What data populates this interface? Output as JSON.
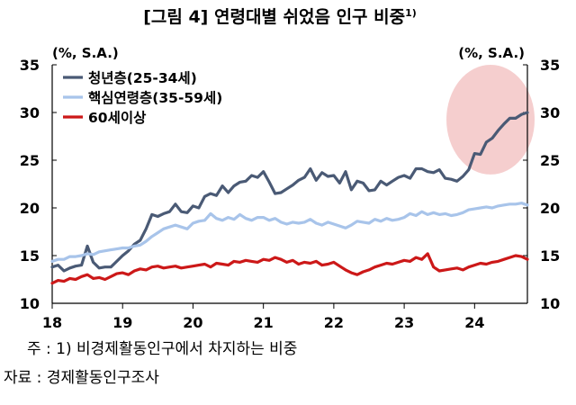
{
  "chart_data": {
    "type": "line",
    "title": "[그림 4] 연령대별 쉬었음 인구 비중",
    "title_superscript": "1)",
    "y_unit_left": "(%, S.A.)",
    "y_unit_right": "(%, S.A.)",
    "ylim": [
      10,
      35
    ],
    "yticks": [
      10,
      15,
      20,
      25,
      30,
      35
    ],
    "xlim": [
      2018.0,
      2024.75
    ],
    "xticks": [
      {
        "value": 2018,
        "label": "18"
      },
      {
        "value": 2019,
        "label": "19"
      },
      {
        "value": 2020,
        "label": "20"
      },
      {
        "value": 2021,
        "label": "21"
      },
      {
        "value": 2022,
        "label": "22"
      },
      {
        "value": 2023,
        "label": "23"
      },
      {
        "value": 2024,
        "label": "24"
      }
    ],
    "grid": false,
    "legend_position": "top-left",
    "highlight": {
      "shape": "ellipse",
      "color": "#f3c6c6",
      "x_range": [
        2023.6,
        2024.75
      ],
      "y_range": [
        23.5,
        35
      ]
    },
    "series": [
      {
        "name": "청년층(25-34세)",
        "color": "#4a5a75",
        "points": [
          [
            2018.0,
            13.8
          ],
          [
            2018.083,
            14.0
          ],
          [
            2018.167,
            13.4
          ],
          [
            2018.25,
            13.7
          ],
          [
            2018.333,
            13.9
          ],
          [
            2018.417,
            14.0
          ],
          [
            2018.5,
            16.0
          ],
          [
            2018.583,
            14.3
          ],
          [
            2018.667,
            13.7
          ],
          [
            2018.75,
            13.8
          ],
          [
            2018.833,
            13.8
          ],
          [
            2018.917,
            14.4
          ],
          [
            2019.0,
            15.0
          ],
          [
            2019.083,
            15.5
          ],
          [
            2019.167,
            16.2
          ],
          [
            2019.25,
            16.6
          ],
          [
            2019.333,
            17.8
          ],
          [
            2019.417,
            19.3
          ],
          [
            2019.5,
            19.1
          ],
          [
            2019.583,
            19.4
          ],
          [
            2019.667,
            19.6
          ],
          [
            2019.75,
            20.4
          ],
          [
            2019.833,
            19.6
          ],
          [
            2019.917,
            19.5
          ],
          [
            2020.0,
            20.2
          ],
          [
            2020.083,
            20.0
          ],
          [
            2020.167,
            21.2
          ],
          [
            2020.25,
            21.5
          ],
          [
            2020.333,
            21.3
          ],
          [
            2020.417,
            22.3
          ],
          [
            2020.5,
            21.6
          ],
          [
            2020.583,
            22.3
          ],
          [
            2020.667,
            22.7
          ],
          [
            2020.75,
            22.8
          ],
          [
            2020.833,
            23.4
          ],
          [
            2020.917,
            23.2
          ],
          [
            2021.0,
            23.8
          ],
          [
            2021.083,
            22.7
          ],
          [
            2021.167,
            21.5
          ],
          [
            2021.25,
            21.6
          ],
          [
            2021.333,
            22.0
          ],
          [
            2021.417,
            22.4
          ],
          [
            2021.5,
            22.9
          ],
          [
            2021.583,
            23.2
          ],
          [
            2021.667,
            24.1
          ],
          [
            2021.75,
            22.9
          ],
          [
            2021.833,
            23.7
          ],
          [
            2021.917,
            23.3
          ],
          [
            2022.0,
            23.4
          ],
          [
            2022.083,
            22.6
          ],
          [
            2022.167,
            23.8
          ],
          [
            2022.25,
            21.9
          ],
          [
            2022.333,
            22.8
          ],
          [
            2022.417,
            22.6
          ],
          [
            2022.5,
            21.8
          ],
          [
            2022.583,
            21.9
          ],
          [
            2022.667,
            22.8
          ],
          [
            2022.75,
            22.4
          ],
          [
            2022.833,
            22.8
          ],
          [
            2022.917,
            23.2
          ],
          [
            2023.0,
            23.4
          ],
          [
            2023.083,
            23.1
          ],
          [
            2023.167,
            24.1
          ],
          [
            2023.25,
            24.1
          ],
          [
            2023.333,
            23.8
          ],
          [
            2023.417,
            23.7
          ],
          [
            2023.5,
            24.0
          ],
          [
            2023.583,
            23.1
          ],
          [
            2023.667,
            23.0
          ],
          [
            2023.75,
            22.8
          ],
          [
            2023.833,
            23.3
          ],
          [
            2023.917,
            24.0
          ],
          [
            2024.0,
            25.7
          ],
          [
            2024.083,
            25.6
          ],
          [
            2024.167,
            26.9
          ],
          [
            2024.25,
            27.3
          ],
          [
            2024.333,
            28.1
          ],
          [
            2024.417,
            28.8
          ],
          [
            2024.5,
            29.4
          ],
          [
            2024.583,
            29.4
          ],
          [
            2024.667,
            29.8
          ],
          [
            2024.75,
            30.0
          ]
        ]
      },
      {
        "name": "핵심연령층(35-59세)",
        "color": "#a8c4ea",
        "points": [
          [
            2018.0,
            14.4
          ],
          [
            2018.083,
            14.6
          ],
          [
            2018.167,
            14.6
          ],
          [
            2018.25,
            14.9
          ],
          [
            2018.333,
            14.9
          ],
          [
            2018.417,
            15.0
          ],
          [
            2018.5,
            15.2
          ],
          [
            2018.583,
            15.1
          ],
          [
            2018.667,
            15.4
          ],
          [
            2018.75,
            15.5
          ],
          [
            2018.833,
            15.6
          ],
          [
            2018.917,
            15.7
          ],
          [
            2019.0,
            15.8
          ],
          [
            2019.083,
            15.8
          ],
          [
            2019.167,
            16.0
          ],
          [
            2019.25,
            16.1
          ],
          [
            2019.333,
            16.5
          ],
          [
            2019.417,
            17.0
          ],
          [
            2019.5,
            17.4
          ],
          [
            2019.583,
            17.8
          ],
          [
            2019.667,
            18.0
          ],
          [
            2019.75,
            18.2
          ],
          [
            2019.833,
            18.0
          ],
          [
            2019.917,
            17.8
          ],
          [
            2020.0,
            18.4
          ],
          [
            2020.083,
            18.6
          ],
          [
            2020.167,
            18.7
          ],
          [
            2020.25,
            19.4
          ],
          [
            2020.333,
            18.9
          ],
          [
            2020.417,
            18.7
          ],
          [
            2020.5,
            19.0
          ],
          [
            2020.583,
            18.8
          ],
          [
            2020.667,
            19.3
          ],
          [
            2020.75,
            18.9
          ],
          [
            2020.833,
            18.7
          ],
          [
            2020.917,
            19.0
          ],
          [
            2021.0,
            19.0
          ],
          [
            2021.083,
            18.7
          ],
          [
            2021.167,
            18.9
          ],
          [
            2021.25,
            18.5
          ],
          [
            2021.333,
            18.3
          ],
          [
            2021.417,
            18.5
          ],
          [
            2021.5,
            18.4
          ],
          [
            2021.583,
            18.5
          ],
          [
            2021.667,
            18.8
          ],
          [
            2021.75,
            18.4
          ],
          [
            2021.833,
            18.2
          ],
          [
            2021.917,
            18.5
          ],
          [
            2022.0,
            18.3
          ],
          [
            2022.083,
            18.1
          ],
          [
            2022.167,
            17.9
          ],
          [
            2022.25,
            18.2
          ],
          [
            2022.333,
            18.6
          ],
          [
            2022.417,
            18.5
          ],
          [
            2022.5,
            18.4
          ],
          [
            2022.583,
            18.8
          ],
          [
            2022.667,
            18.6
          ],
          [
            2022.75,
            18.9
          ],
          [
            2022.833,
            18.7
          ],
          [
            2022.917,
            18.8
          ],
          [
            2023.0,
            19.0
          ],
          [
            2023.083,
            19.4
          ],
          [
            2023.167,
            19.2
          ],
          [
            2023.25,
            19.6
          ],
          [
            2023.333,
            19.3
          ],
          [
            2023.417,
            19.5
          ],
          [
            2023.5,
            19.3
          ],
          [
            2023.583,
            19.4
          ],
          [
            2023.667,
            19.2
          ],
          [
            2023.75,
            19.3
          ],
          [
            2023.833,
            19.5
          ],
          [
            2023.917,
            19.8
          ],
          [
            2024.0,
            19.9
          ],
          [
            2024.083,
            20.0
          ],
          [
            2024.167,
            20.1
          ],
          [
            2024.25,
            20.0
          ],
          [
            2024.333,
            20.2
          ],
          [
            2024.417,
            20.3
          ],
          [
            2024.5,
            20.4
          ],
          [
            2024.583,
            20.4
          ],
          [
            2024.667,
            20.5
          ],
          [
            2024.75,
            20.3
          ]
        ]
      },
      {
        "name": "60세이상",
        "color": "#cc1818",
        "points": [
          [
            2018.0,
            12.1
          ],
          [
            2018.083,
            12.4
          ],
          [
            2018.167,
            12.3
          ],
          [
            2018.25,
            12.6
          ],
          [
            2018.333,
            12.5
          ],
          [
            2018.417,
            12.8
          ],
          [
            2018.5,
            13.0
          ],
          [
            2018.583,
            12.6
          ],
          [
            2018.667,
            12.7
          ],
          [
            2018.75,
            12.5
          ],
          [
            2018.833,
            12.8
          ],
          [
            2018.917,
            13.1
          ],
          [
            2019.0,
            13.2
          ],
          [
            2019.083,
            13.0
          ],
          [
            2019.167,
            13.4
          ],
          [
            2019.25,
            13.6
          ],
          [
            2019.333,
            13.5
          ],
          [
            2019.417,
            13.8
          ],
          [
            2019.5,
            13.9
          ],
          [
            2019.583,
            13.7
          ],
          [
            2019.667,
            13.8
          ],
          [
            2019.75,
            13.9
          ],
          [
            2019.833,
            13.7
          ],
          [
            2019.917,
            13.8
          ],
          [
            2020.0,
            13.9
          ],
          [
            2020.083,
            14.0
          ],
          [
            2020.167,
            14.1
          ],
          [
            2020.25,
            13.8
          ],
          [
            2020.333,
            14.2
          ],
          [
            2020.417,
            14.1
          ],
          [
            2020.5,
            14.0
          ],
          [
            2020.583,
            14.4
          ],
          [
            2020.667,
            14.3
          ],
          [
            2020.75,
            14.5
          ],
          [
            2020.833,
            14.4
          ],
          [
            2020.917,
            14.3
          ],
          [
            2021.0,
            14.6
          ],
          [
            2021.083,
            14.5
          ],
          [
            2021.167,
            14.8
          ],
          [
            2021.25,
            14.6
          ],
          [
            2021.333,
            14.3
          ],
          [
            2021.417,
            14.5
          ],
          [
            2021.5,
            14.1
          ],
          [
            2021.583,
            14.3
          ],
          [
            2021.667,
            14.2
          ],
          [
            2021.75,
            14.4
          ],
          [
            2021.833,
            14.0
          ],
          [
            2021.917,
            14.1
          ],
          [
            2022.0,
            14.3
          ],
          [
            2022.083,
            13.9
          ],
          [
            2022.167,
            13.5
          ],
          [
            2022.25,
            13.2
          ],
          [
            2022.333,
            13.0
          ],
          [
            2022.417,
            13.3
          ],
          [
            2022.5,
            13.5
          ],
          [
            2022.583,
            13.8
          ],
          [
            2022.667,
            14.0
          ],
          [
            2022.75,
            14.2
          ],
          [
            2022.833,
            14.1
          ],
          [
            2022.917,
            14.3
          ],
          [
            2023.0,
            14.5
          ],
          [
            2023.083,
            14.4
          ],
          [
            2023.167,
            14.8
          ],
          [
            2023.25,
            14.6
          ],
          [
            2023.333,
            15.2
          ],
          [
            2023.417,
            13.8
          ],
          [
            2023.5,
            13.4
          ],
          [
            2023.583,
            13.5
          ],
          [
            2023.667,
            13.6
          ],
          [
            2023.75,
            13.7
          ],
          [
            2023.833,
            13.5
          ],
          [
            2023.917,
            13.8
          ],
          [
            2024.0,
            14.0
          ],
          [
            2024.083,
            14.2
          ],
          [
            2024.167,
            14.1
          ],
          [
            2024.25,
            14.3
          ],
          [
            2024.333,
            14.4
          ],
          [
            2024.417,
            14.6
          ],
          [
            2024.5,
            14.8
          ],
          [
            2024.583,
            15.0
          ],
          [
            2024.667,
            14.9
          ],
          [
            2024.75,
            14.6
          ]
        ]
      }
    ],
    "notes": [
      "주 : 1) 비경제활동인구에서 차지하는 비중",
      "자료 : 경제활동인구조사"
    ]
  }
}
